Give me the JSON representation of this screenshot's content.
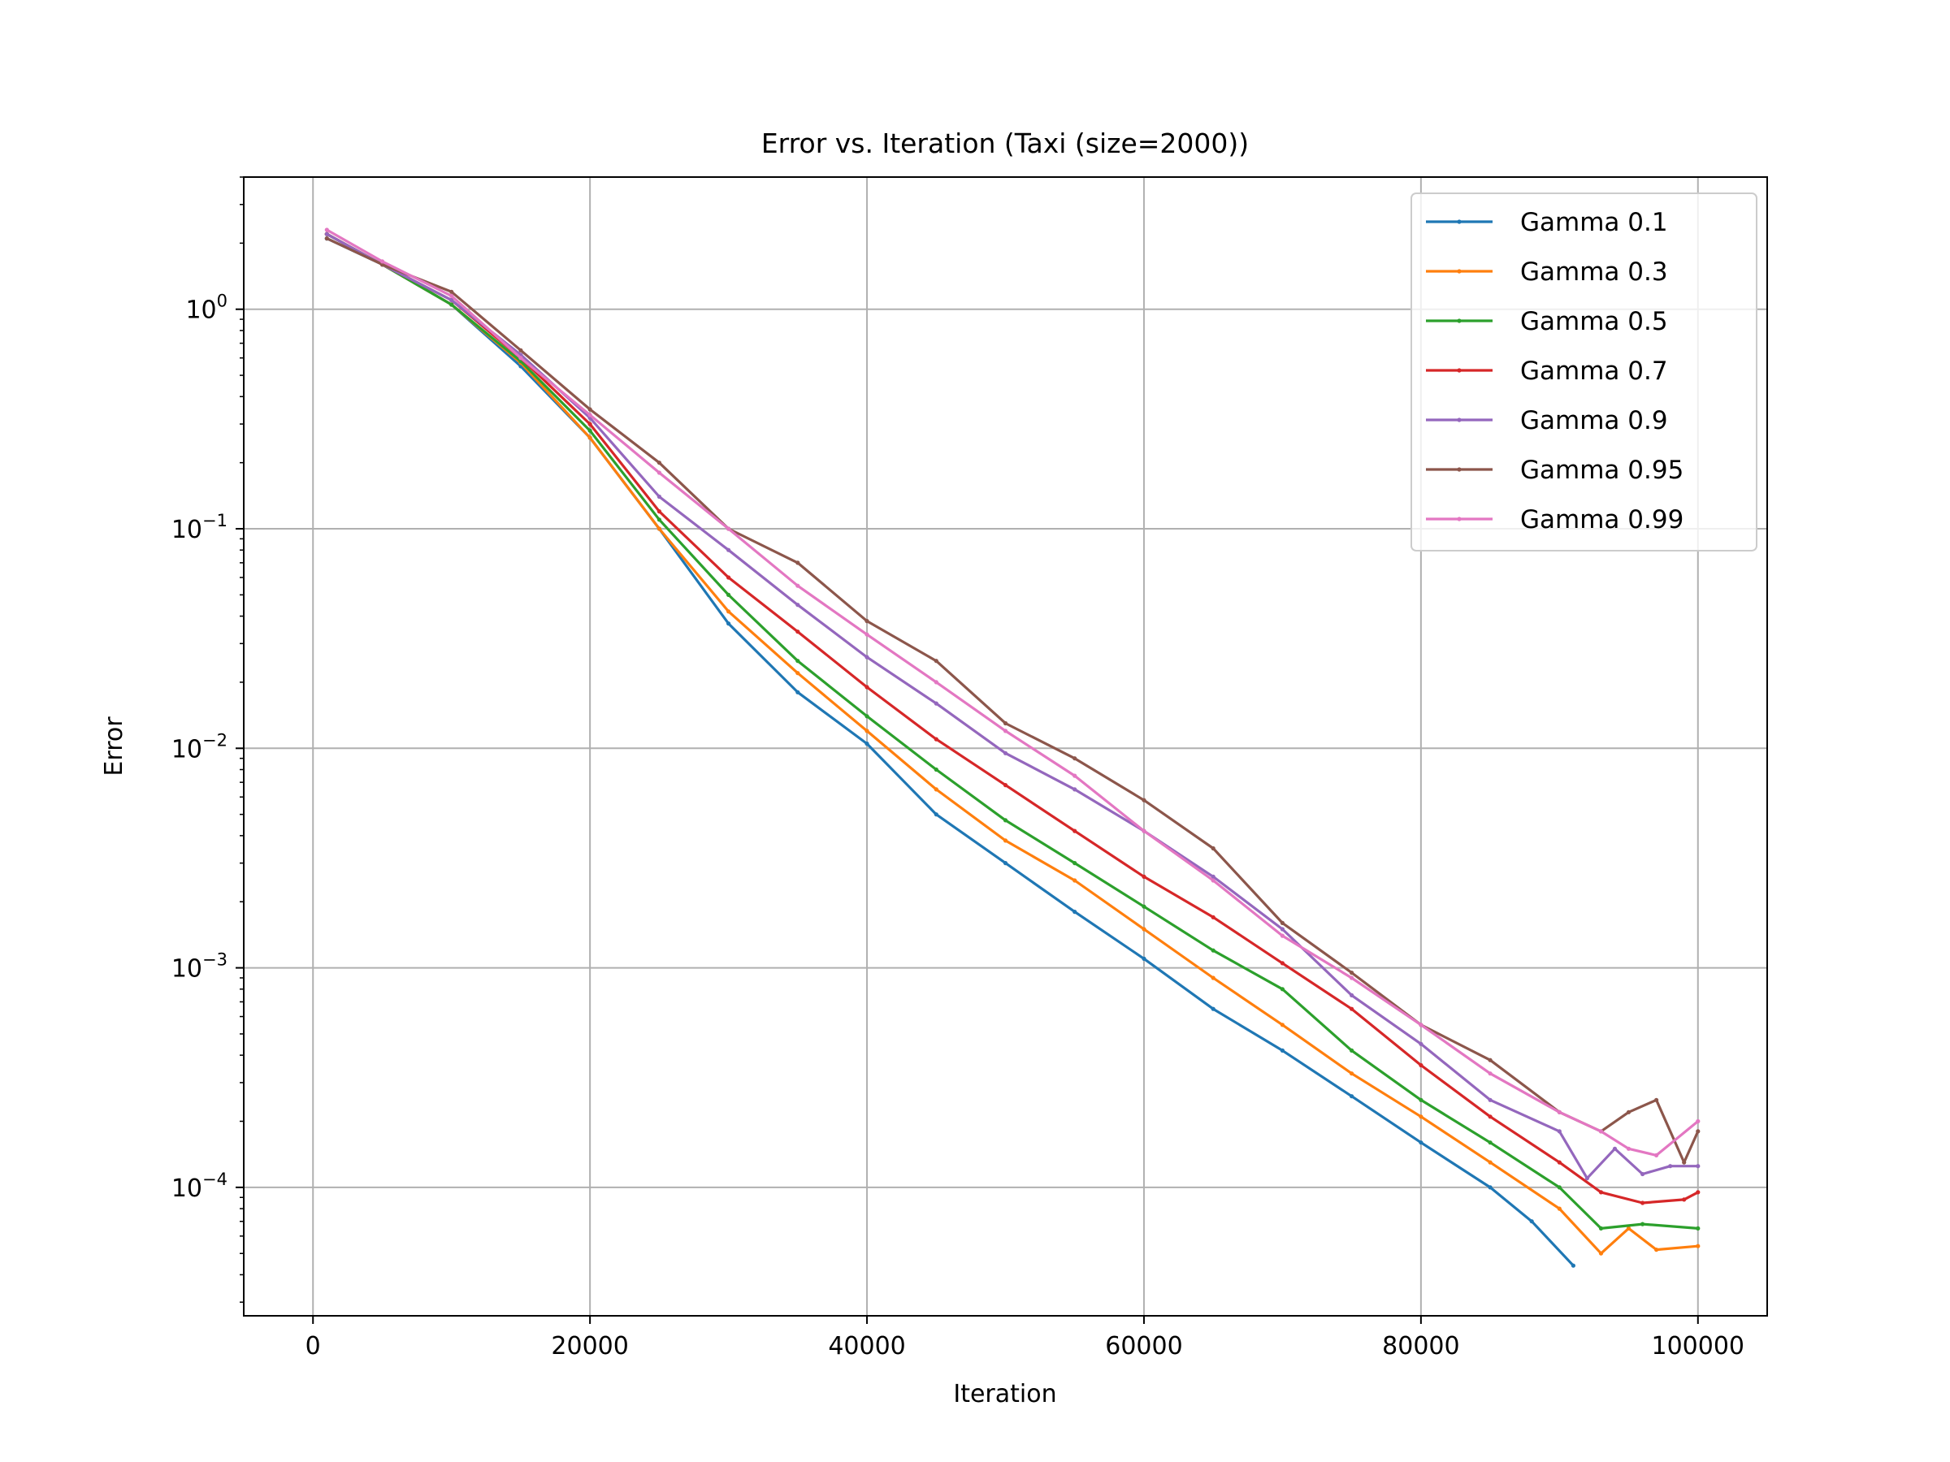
{
  "chart_data": {
    "type": "line",
    "title": "Error vs. Iteration (Taxi (size=2000))",
    "xlabel": "Iteration",
    "ylabel": "Error",
    "xlim": [
      -5000,
      105000
    ],
    "ylim": [
      2.6e-05,
      4.0
    ],
    "yscale": "log",
    "grid": true,
    "legend_position": "top-right",
    "x_ticks": [
      0,
      20000,
      40000,
      60000,
      80000,
      100000
    ],
    "x_tick_labels": [
      "0",
      "20000",
      "40000",
      "60000",
      "80000",
      "100000"
    ],
    "y_ticks": [
      {
        "value": 1,
        "base": "10",
        "exp": "0"
      },
      {
        "value": 0.1,
        "base": "10",
        "exp": "−1"
      },
      {
        "value": 0.01,
        "base": "10",
        "exp": "−2"
      },
      {
        "value": 0.001,
        "base": "10",
        "exp": "−3"
      },
      {
        "value": 0.0001,
        "base": "10",
        "exp": "−4"
      }
    ],
    "x": [
      1000,
      10000,
      20000,
      30000,
      40000,
      50000,
      60000,
      70000,
      80000,
      90000,
      100000
    ],
    "series": [
      {
        "name": "Gamma 0.1",
        "color": "#1f77b4",
        "points": [
          [
            1000,
            2.1
          ],
          [
            5000,
            1.6
          ],
          [
            10000,
            1.05
          ],
          [
            15000,
            0.55
          ],
          [
            20000,
            0.26
          ],
          [
            25000,
            0.1
          ],
          [
            30000,
            0.037
          ],
          [
            35000,
            0.018
          ],
          [
            40000,
            0.0105
          ],
          [
            45000,
            0.005
          ],
          [
            50000,
            0.003
          ],
          [
            55000,
            0.0018
          ],
          [
            60000,
            0.0011
          ],
          [
            65000,
            0.00065
          ],
          [
            70000,
            0.00042
          ],
          [
            75000,
            0.00026
          ],
          [
            80000,
            0.00016
          ],
          [
            85000,
            0.0001
          ],
          [
            88000,
            7e-05
          ],
          [
            91000,
            4.4e-05
          ]
        ]
      },
      {
        "name": "Gamma 0.3",
        "color": "#ff7f0e",
        "points": [
          [
            1000,
            2.2
          ],
          [
            5000,
            1.6
          ],
          [
            10000,
            1.05
          ],
          [
            15000,
            0.57
          ],
          [
            20000,
            0.26
          ],
          [
            25000,
            0.1
          ],
          [
            30000,
            0.042
          ],
          [
            35000,
            0.022
          ],
          [
            40000,
            0.012
          ],
          [
            45000,
            0.0065
          ],
          [
            50000,
            0.0038
          ],
          [
            55000,
            0.0025
          ],
          [
            60000,
            0.0015
          ],
          [
            65000,
            0.0009
          ],
          [
            70000,
            0.00055
          ],
          [
            75000,
            0.00033
          ],
          [
            80000,
            0.00021
          ],
          [
            85000,
            0.00013
          ],
          [
            90000,
            8e-05
          ],
          [
            93000,
            5e-05
          ],
          [
            95000,
            6.5e-05
          ],
          [
            97000,
            5.2e-05
          ],
          [
            100000,
            5.4e-05
          ]
        ]
      },
      {
        "name": "Gamma 0.5",
        "color": "#2ca02c",
        "points": [
          [
            1000,
            2.2
          ],
          [
            5000,
            1.6
          ],
          [
            10000,
            1.05
          ],
          [
            15000,
            0.58
          ],
          [
            20000,
            0.28
          ],
          [
            25000,
            0.11
          ],
          [
            30000,
            0.05
          ],
          [
            35000,
            0.025
          ],
          [
            40000,
            0.014
          ],
          [
            45000,
            0.008
          ],
          [
            50000,
            0.0047
          ],
          [
            55000,
            0.003
          ],
          [
            60000,
            0.0019
          ],
          [
            65000,
            0.0012
          ],
          [
            70000,
            0.0008
          ],
          [
            75000,
            0.00042
          ],
          [
            80000,
            0.00025
          ],
          [
            85000,
            0.00016
          ],
          [
            90000,
            0.0001
          ],
          [
            93000,
            6.5e-05
          ],
          [
            96000,
            6.8e-05
          ],
          [
            100000,
            6.5e-05
          ]
        ]
      },
      {
        "name": "Gamma 0.7",
        "color": "#d62728",
        "points": [
          [
            1000,
            2.2
          ],
          [
            5000,
            1.6
          ],
          [
            10000,
            1.1
          ],
          [
            15000,
            0.6
          ],
          [
            20000,
            0.3
          ],
          [
            25000,
            0.12
          ],
          [
            30000,
            0.06
          ],
          [
            35000,
            0.034
          ],
          [
            40000,
            0.019
          ],
          [
            45000,
            0.011
          ],
          [
            50000,
            0.0068
          ],
          [
            55000,
            0.0042
          ],
          [
            60000,
            0.0026
          ],
          [
            65000,
            0.0017
          ],
          [
            70000,
            0.00105
          ],
          [
            75000,
            0.00065
          ],
          [
            80000,
            0.00036
          ],
          [
            85000,
            0.00021
          ],
          [
            90000,
            0.00013
          ],
          [
            93000,
            9.5e-05
          ],
          [
            96000,
            8.5e-05
          ],
          [
            99000,
            8.8e-05
          ],
          [
            100000,
            9.5e-05
          ]
        ]
      },
      {
        "name": "Gamma 0.9",
        "color": "#9467bd",
        "points": [
          [
            1000,
            2.2
          ],
          [
            5000,
            1.6
          ],
          [
            10000,
            1.1
          ],
          [
            15000,
            0.62
          ],
          [
            20000,
            0.32
          ],
          [
            25000,
            0.14
          ],
          [
            30000,
            0.08
          ],
          [
            35000,
            0.045
          ],
          [
            40000,
            0.026
          ],
          [
            45000,
            0.016
          ],
          [
            50000,
            0.0095
          ],
          [
            55000,
            0.0065
          ],
          [
            60000,
            0.0042
          ],
          [
            65000,
            0.0026
          ],
          [
            70000,
            0.0015
          ],
          [
            75000,
            0.00075
          ],
          [
            80000,
            0.00045
          ],
          [
            85000,
            0.00025
          ],
          [
            90000,
            0.00018
          ],
          [
            92000,
            0.00011
          ],
          [
            94000,
            0.00015
          ],
          [
            96000,
            0.000115
          ],
          [
            98000,
            0.000125
          ],
          [
            100000,
            0.000125
          ]
        ]
      },
      {
        "name": "Gamma 0.95",
        "color": "#8c564b",
        "points": [
          [
            1000,
            2.1
          ],
          [
            5000,
            1.6
          ],
          [
            10000,
            1.2
          ],
          [
            15000,
            0.65
          ],
          [
            20000,
            0.35
          ],
          [
            25000,
            0.2
          ],
          [
            30000,
            0.1
          ],
          [
            35000,
            0.07
          ],
          [
            40000,
            0.038
          ],
          [
            45000,
            0.025
          ],
          [
            50000,
            0.013
          ],
          [
            55000,
            0.009
          ],
          [
            60000,
            0.0058
          ],
          [
            65000,
            0.0035
          ],
          [
            70000,
            0.0016
          ],
          [
            75000,
            0.00095
          ],
          [
            80000,
            0.00055
          ],
          [
            85000,
            0.00038
          ],
          [
            90000,
            0.00022
          ],
          [
            93000,
            0.00018
          ],
          [
            95000,
            0.00022
          ],
          [
            97000,
            0.00025
          ],
          [
            99000,
            0.00013
          ],
          [
            100000,
            0.00018
          ]
        ]
      },
      {
        "name": "Gamma 0.99",
        "color": "#e377c2",
        "points": [
          [
            1000,
            2.3
          ],
          [
            5000,
            1.65
          ],
          [
            10000,
            1.15
          ],
          [
            15000,
            0.6
          ],
          [
            20000,
            0.33
          ],
          [
            25000,
            0.18
          ],
          [
            30000,
            0.1
          ],
          [
            35000,
            0.055
          ],
          [
            40000,
            0.033
          ],
          [
            45000,
            0.02
          ],
          [
            50000,
            0.012
          ],
          [
            55000,
            0.0075
          ],
          [
            60000,
            0.0042
          ],
          [
            65000,
            0.0025
          ],
          [
            70000,
            0.0014
          ],
          [
            75000,
            0.0009
          ],
          [
            80000,
            0.00055
          ],
          [
            85000,
            0.00033
          ],
          [
            90000,
            0.00022
          ],
          [
            93000,
            0.00018
          ],
          [
            95000,
            0.00015
          ],
          [
            97000,
            0.00014
          ],
          [
            100000,
            0.0002
          ]
        ]
      }
    ]
  }
}
